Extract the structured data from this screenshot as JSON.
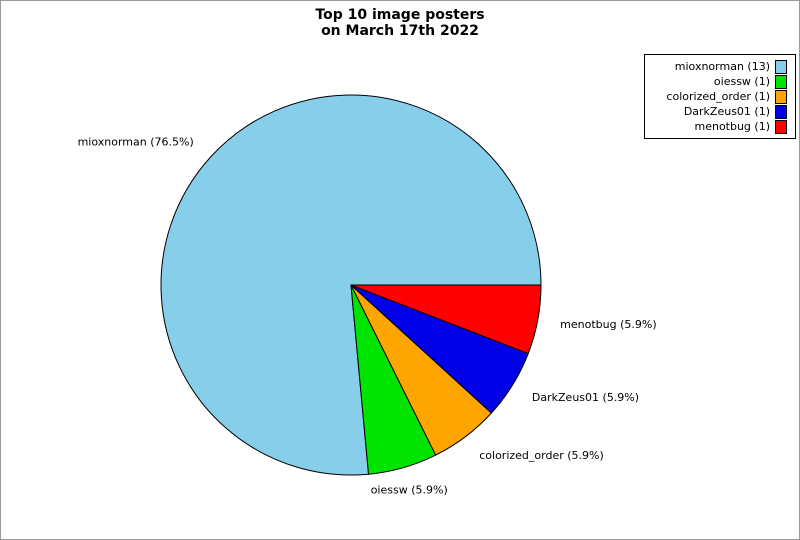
{
  "chart_data": {
    "type": "pie",
    "title": "Top 10 image posters\non March 17th 2022",
    "title_lines": [
      "Top 10 image posters",
      "on March 17th 2022"
    ],
    "total_images": 17,
    "start_angle_deg": 0,
    "direction": "counterclockwise",
    "legend_position": "top-right",
    "label_distance": 1.12,
    "background_color": "#ffffff",
    "frame_border_color": "#999999",
    "slice_outline_color": "#000000",
    "slices": [
      {
        "label": "mioxnorman",
        "count": 13,
        "percent": 76.5,
        "pie_label": "mioxnorman (76.5%)",
        "legend_label": "mioxnorman (13)",
        "color": "#87ceeb"
      },
      {
        "label": "oiessw",
        "count": 1,
        "percent": 5.9,
        "pie_label": "oiessw (5.9%)",
        "legend_label": "oiessw (1)",
        "color": "#00e400"
      },
      {
        "label": "colorized_order",
        "count": 1,
        "percent": 5.9,
        "pie_label": "colorized_order (5.9%)",
        "legend_label": "colorized_order (1)",
        "color": "#ffa500"
      },
      {
        "label": "DarkZeus01",
        "count": 1,
        "percent": 5.9,
        "pie_label": "DarkZeus01 (5.9%)",
        "legend_label": "DarkZeus01 (1)",
        "color": "#0000e8"
      },
      {
        "label": "menotbug",
        "count": 1,
        "percent": 5.9,
        "pie_label": "menotbug (5.9%)",
        "legend_label": "menotbug (1)",
        "color": "#ff0000"
      }
    ]
  }
}
